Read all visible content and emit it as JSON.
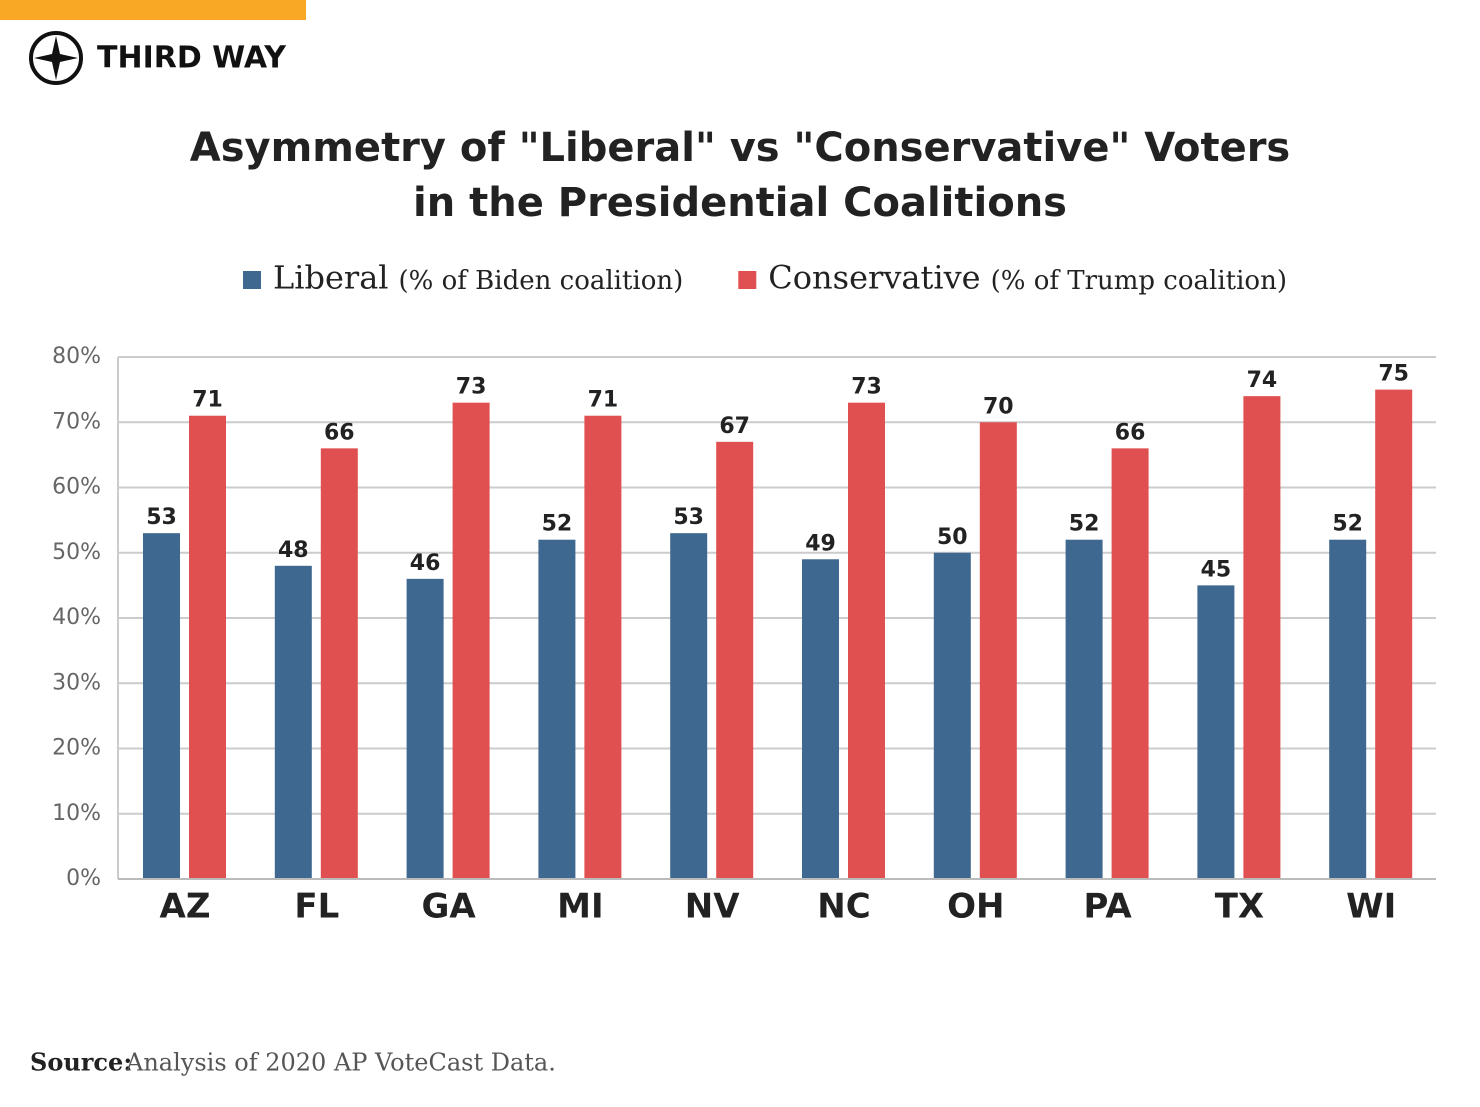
{
  "brand": "THIRD WAY",
  "source": {
    "label": "Source:",
    "text": "Analysis of 2020 AP VoteCast Data."
  },
  "chart_data": {
    "type": "bar",
    "title": [
      "Asymmetry of \"Liberal\" vs \"Conservative\" Voters",
      "in the Presidential Coalitions"
    ],
    "categories": [
      "AZ",
      "FL",
      "GA",
      "MI",
      "NV",
      "NC",
      "OH",
      "PA",
      "TX",
      "WI"
    ],
    "series": [
      {
        "name": "Liberal",
        "note": "(% of Biden coalition)",
        "color": "#3f6890",
        "values": [
          53,
          48,
          46,
          52,
          53,
          49,
          50,
          52,
          45,
          52
        ]
      },
      {
        "name": "Conservative",
        "note": "(% of Trump coalition)",
        "color": "#e05050",
        "values": [
          71,
          66,
          73,
          71,
          67,
          73,
          70,
          66,
          74,
          75
        ]
      }
    ],
    "ylim": [
      0,
      80
    ],
    "yticks": [
      {
        "value": 0,
        "label": "0%"
      },
      {
        "value": 10,
        "label": "10%"
      },
      {
        "value": 20,
        "label": "20%"
      },
      {
        "value": 30,
        "label": "30%"
      },
      {
        "value": 40,
        "label": "40%"
      },
      {
        "value": 50,
        "label": "50%"
      },
      {
        "value": 60,
        "label": "60%"
      },
      {
        "value": 70,
        "label": "70%"
      },
      {
        "value": 80,
        "label": "80%"
      }
    ],
    "grid": true
  }
}
